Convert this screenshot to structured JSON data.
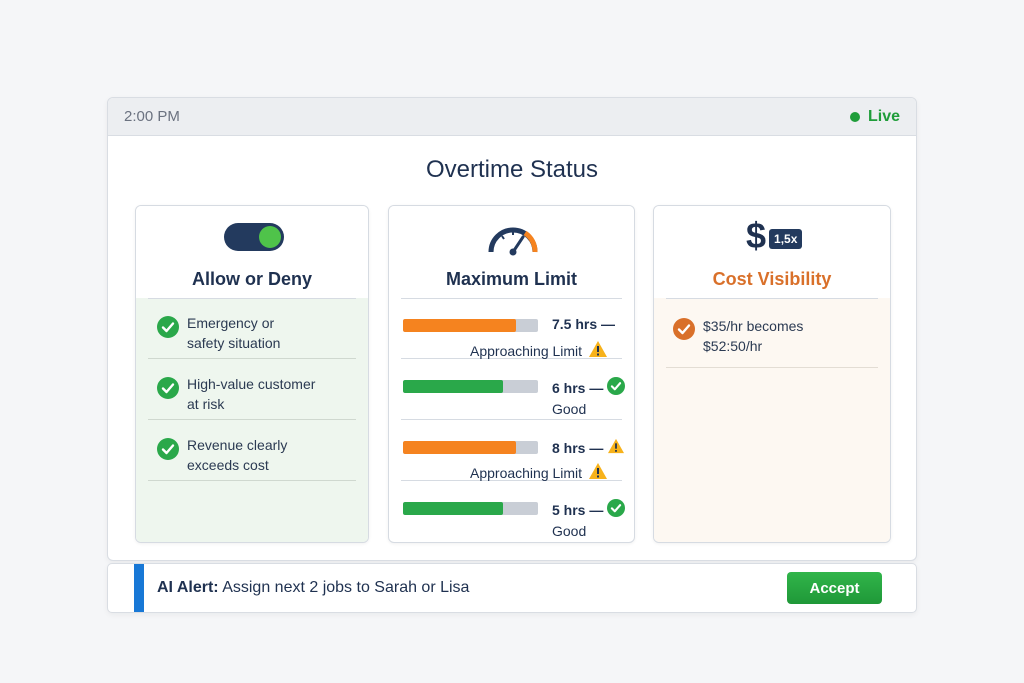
{
  "header": {
    "time": "2:00 PM",
    "live_label": "Live"
  },
  "title": "Overtime Status",
  "colors": {
    "accent": "#1878d6",
    "ok": "#2aa84a",
    "warn": "#f5831f",
    "navy": "#1f3150",
    "cost": "#d9702a"
  },
  "allow_deny": {
    "title": "Allow or Deny",
    "toggle_state": "on",
    "reasons": [
      {
        "line1": "Emergency or",
        "line2": "safety situation"
      },
      {
        "line1": "High-value customer",
        "line2": "at risk"
      },
      {
        "line1": "Revenue clearly",
        "line2": "exceeds cost"
      }
    ]
  },
  "max_limit": {
    "title": "Maximum Limit",
    "rows": [
      {
        "hours": "7.5 hrs —",
        "status": "Approaching Limit",
        "fill": 0.84,
        "level": "warn"
      },
      {
        "hours": "6 hrs —",
        "status": "Good",
        "fill": 0.74,
        "level": "ok"
      },
      {
        "hours": "8 hrs —",
        "status": "Approaching Limit",
        "fill": 0.84,
        "level": "warn"
      },
      {
        "hours": "5 hrs —",
        "status": "Good",
        "fill": 0.74,
        "level": "ok"
      }
    ]
  },
  "cost": {
    "title": "Cost Visibility",
    "symbol": "$",
    "multiplier": "1,5x",
    "line1": "$35/hr becomes",
    "line2": "$52:50/hr"
  },
  "alert": {
    "label": "AI Alert:",
    "message": " Assign next 2 jobs to Sarah or Lisa",
    "accept_label": "Accept"
  }
}
